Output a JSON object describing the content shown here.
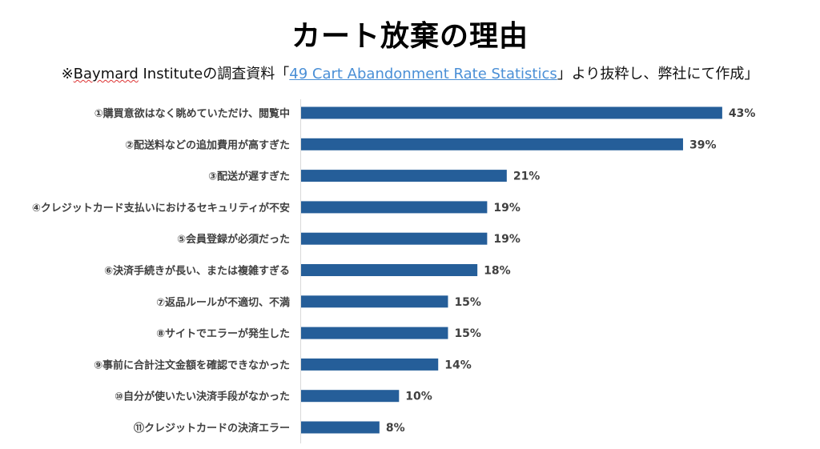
{
  "title": "カート放棄の理由",
  "subtitle": {
    "prefix": "※",
    "brand": "Baymard",
    "mid": " Instituteの調査資料「",
    "link": "49 Cart Abandonment Rate Statistics",
    "suffix": "」より抜粋し、弊社にて作成」"
  },
  "chart_data": {
    "type": "bar",
    "orientation": "horizontal",
    "categories": [
      "①購買意欲はなく眺めていただけ、閲覧中",
      "②配送料などの追加費用が高すぎた",
      "③配送が遅すぎた",
      "④クレジットカード支払いにおけるセキュリティが不安",
      "⑤会員登録が必須だった",
      "⑥決済手続きが長い、または複雑すぎる",
      "⑦返品ルールが不適切、不満",
      "⑧サイトでエラーが発生した",
      "⑨事前に合計注文金額を確認できなかった",
      "⑩自分が使いたい決済手段がなかった",
      "⑪クレジットカードの決済エラー"
    ],
    "values": [
      43,
      39,
      21,
      19,
      19,
      18,
      15,
      15,
      14,
      10,
      8
    ],
    "value_labels": [
      "43%",
      "39%",
      "21%",
      "19%",
      "19%",
      "18%",
      "15%",
      "15%",
      "14%",
      "10%",
      "8%"
    ],
    "unit": "%",
    "bar_color": "#255e99",
    "grid": false,
    "legend": "none"
  }
}
